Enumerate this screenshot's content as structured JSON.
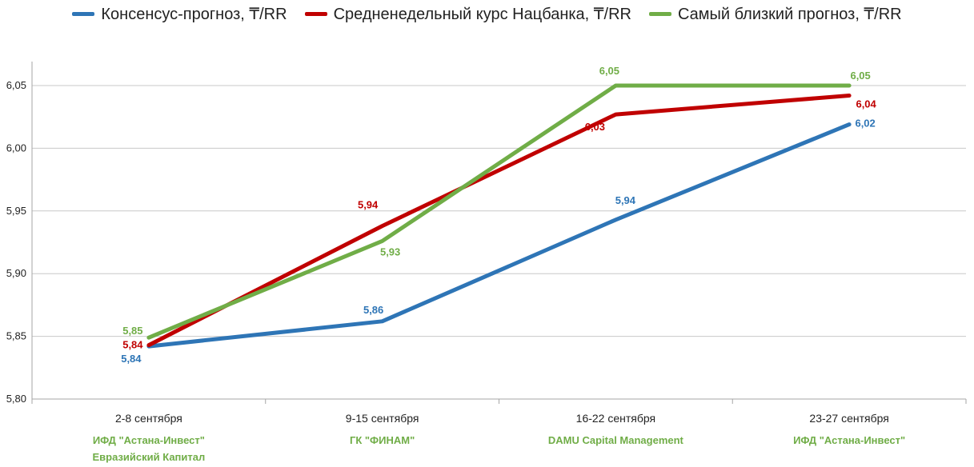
{
  "chart_data": {
    "type": "line",
    "categories": [
      "2-8 сентября",
      "9-15 сентября",
      "16-22 сентября",
      "23-27 сентября"
    ],
    "category_sublabels": [
      [
        "ИФД \"Астана-Инвест\"",
        "Евразийский Капитал"
      ],
      [
        "ГК \"ФИНАМ\""
      ],
      [
        "DAMU Capital Management"
      ],
      [
        "ИФД \"Астана-Инвест\""
      ]
    ],
    "series": [
      {
        "name": "Консенсус-прогноз, ₸/RR",
        "color": "#2E75B6",
        "values": [
          5.842,
          5.862,
          5.943,
          6.019
        ],
        "labels": [
          "5,84",
          "5,86",
          "5,94",
          "6,02"
        ]
      },
      {
        "name": "Средненедельный курс Нацбанка, ₸/RR",
        "color": "#C00000",
        "values": [
          5.843,
          5.938,
          6.027,
          6.042
        ],
        "labels": [
          "5,84",
          "5,94",
          "6,03",
          "6,04"
        ]
      },
      {
        "name": "Самый близкий прогноз, ₸/RR",
        "color": "#70AD47",
        "values": [
          5.849,
          5.926,
          6.05,
          6.05
        ],
        "labels": [
          "5,85",
          "5,93",
          "6,05",
          "6,05"
        ]
      }
    ],
    "yticks": [
      "5,80",
      "5,85",
      "5,90",
      "5,95",
      "6,00",
      "6,05"
    ],
    "ylim": [
      5.8,
      6.07
    ],
    "grid": true,
    "legend": "top"
  },
  "colors": {
    "sublabel": "#70AD47",
    "grid": "#c8c8c8",
    "axis": "#a6a6a6"
  }
}
